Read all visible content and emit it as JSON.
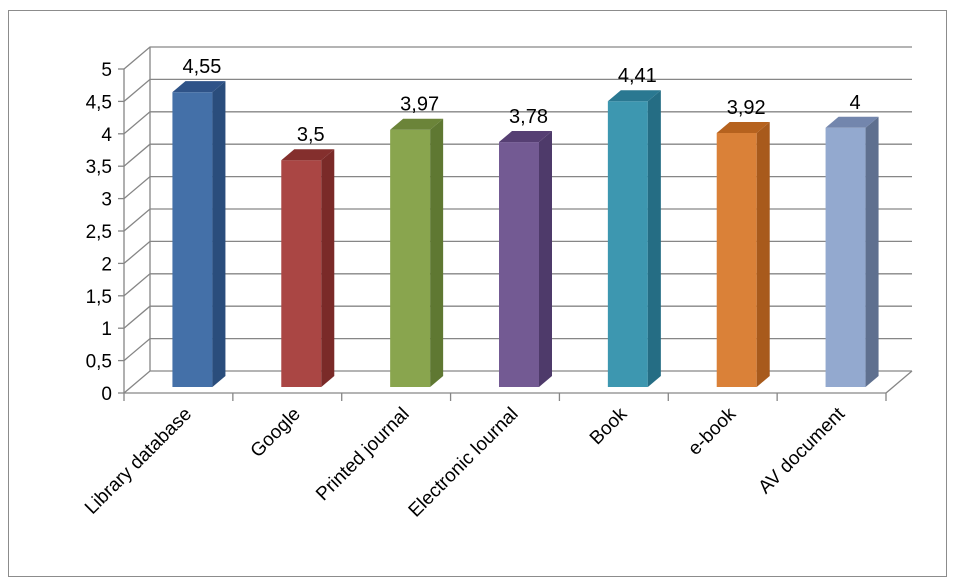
{
  "chart_data": {
    "type": "bar",
    "style": "3d-column",
    "title": "",
    "xlabel": "",
    "ylabel": "",
    "ylim": [
      0,
      5
    ],
    "ytick_step": 0.5,
    "ytick_labels": [
      "0",
      "0,5",
      "1",
      "1,5",
      "2",
      "2,5",
      "3",
      "3,5",
      "4",
      "4,5",
      "5"
    ],
    "grid": true,
    "legend": "none",
    "categories": [
      "Library database",
      "Google",
      "Printed journal",
      "Electronic lournal",
      "Book",
      "e-book",
      "AV document"
    ],
    "values": [
      4.55,
      3.5,
      3.97,
      3.78,
      4.41,
      3.92,
      4
    ],
    "data_labels": [
      "4,55",
      "3,5",
      "3,97",
      "3,78",
      "4,41",
      "3,92",
      "4"
    ],
    "colors": [
      "#4470a8",
      "#aa4644",
      "#89a54e",
      "#735a93",
      "#3d97b0",
      "#da8138",
      "#93a9cf"
    ],
    "top_colors": [
      "#2f5388",
      "#842f2d",
      "#6b8439",
      "#563f73",
      "#2a7891",
      "#b6621e",
      "#7386ad"
    ],
    "side_colors": [
      "#2a4d7c",
      "#7a2a28",
      "#5f7832",
      "#4e3a6a",
      "#256d84",
      "#a85a1c",
      "#5f708f"
    ]
  }
}
